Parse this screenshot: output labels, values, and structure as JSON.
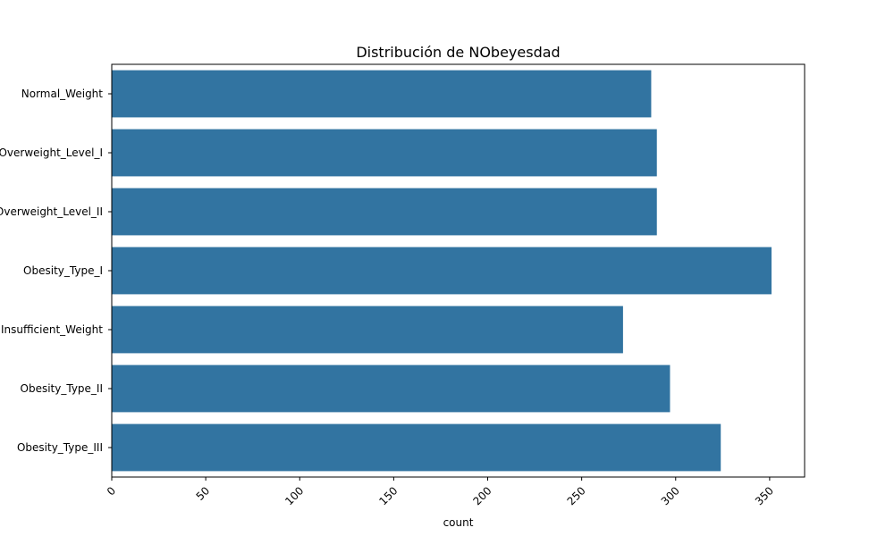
{
  "chart_data": {
    "type": "bar",
    "orientation": "horizontal",
    "title": "Distribución de NObeyesdad",
    "xlabel": "count",
    "ylabel": "",
    "categories": [
      "Normal_Weight",
      "Overweight_Level_I",
      "Overweight_Level_II",
      "Obesity_Type_I",
      "Insufficient_Weight",
      "Obesity_Type_II",
      "Obesity_Type_III"
    ],
    "values": [
      287,
      290,
      290,
      351,
      272,
      297,
      324
    ],
    "xlim": [
      0,
      368.6
    ],
    "xticks": [
      "0",
      "50",
      "100",
      "150",
      "200",
      "250",
      "300",
      "350"
    ],
    "xtick_rotation": -45,
    "grid": false,
    "bar_color": "#3274a1"
  }
}
